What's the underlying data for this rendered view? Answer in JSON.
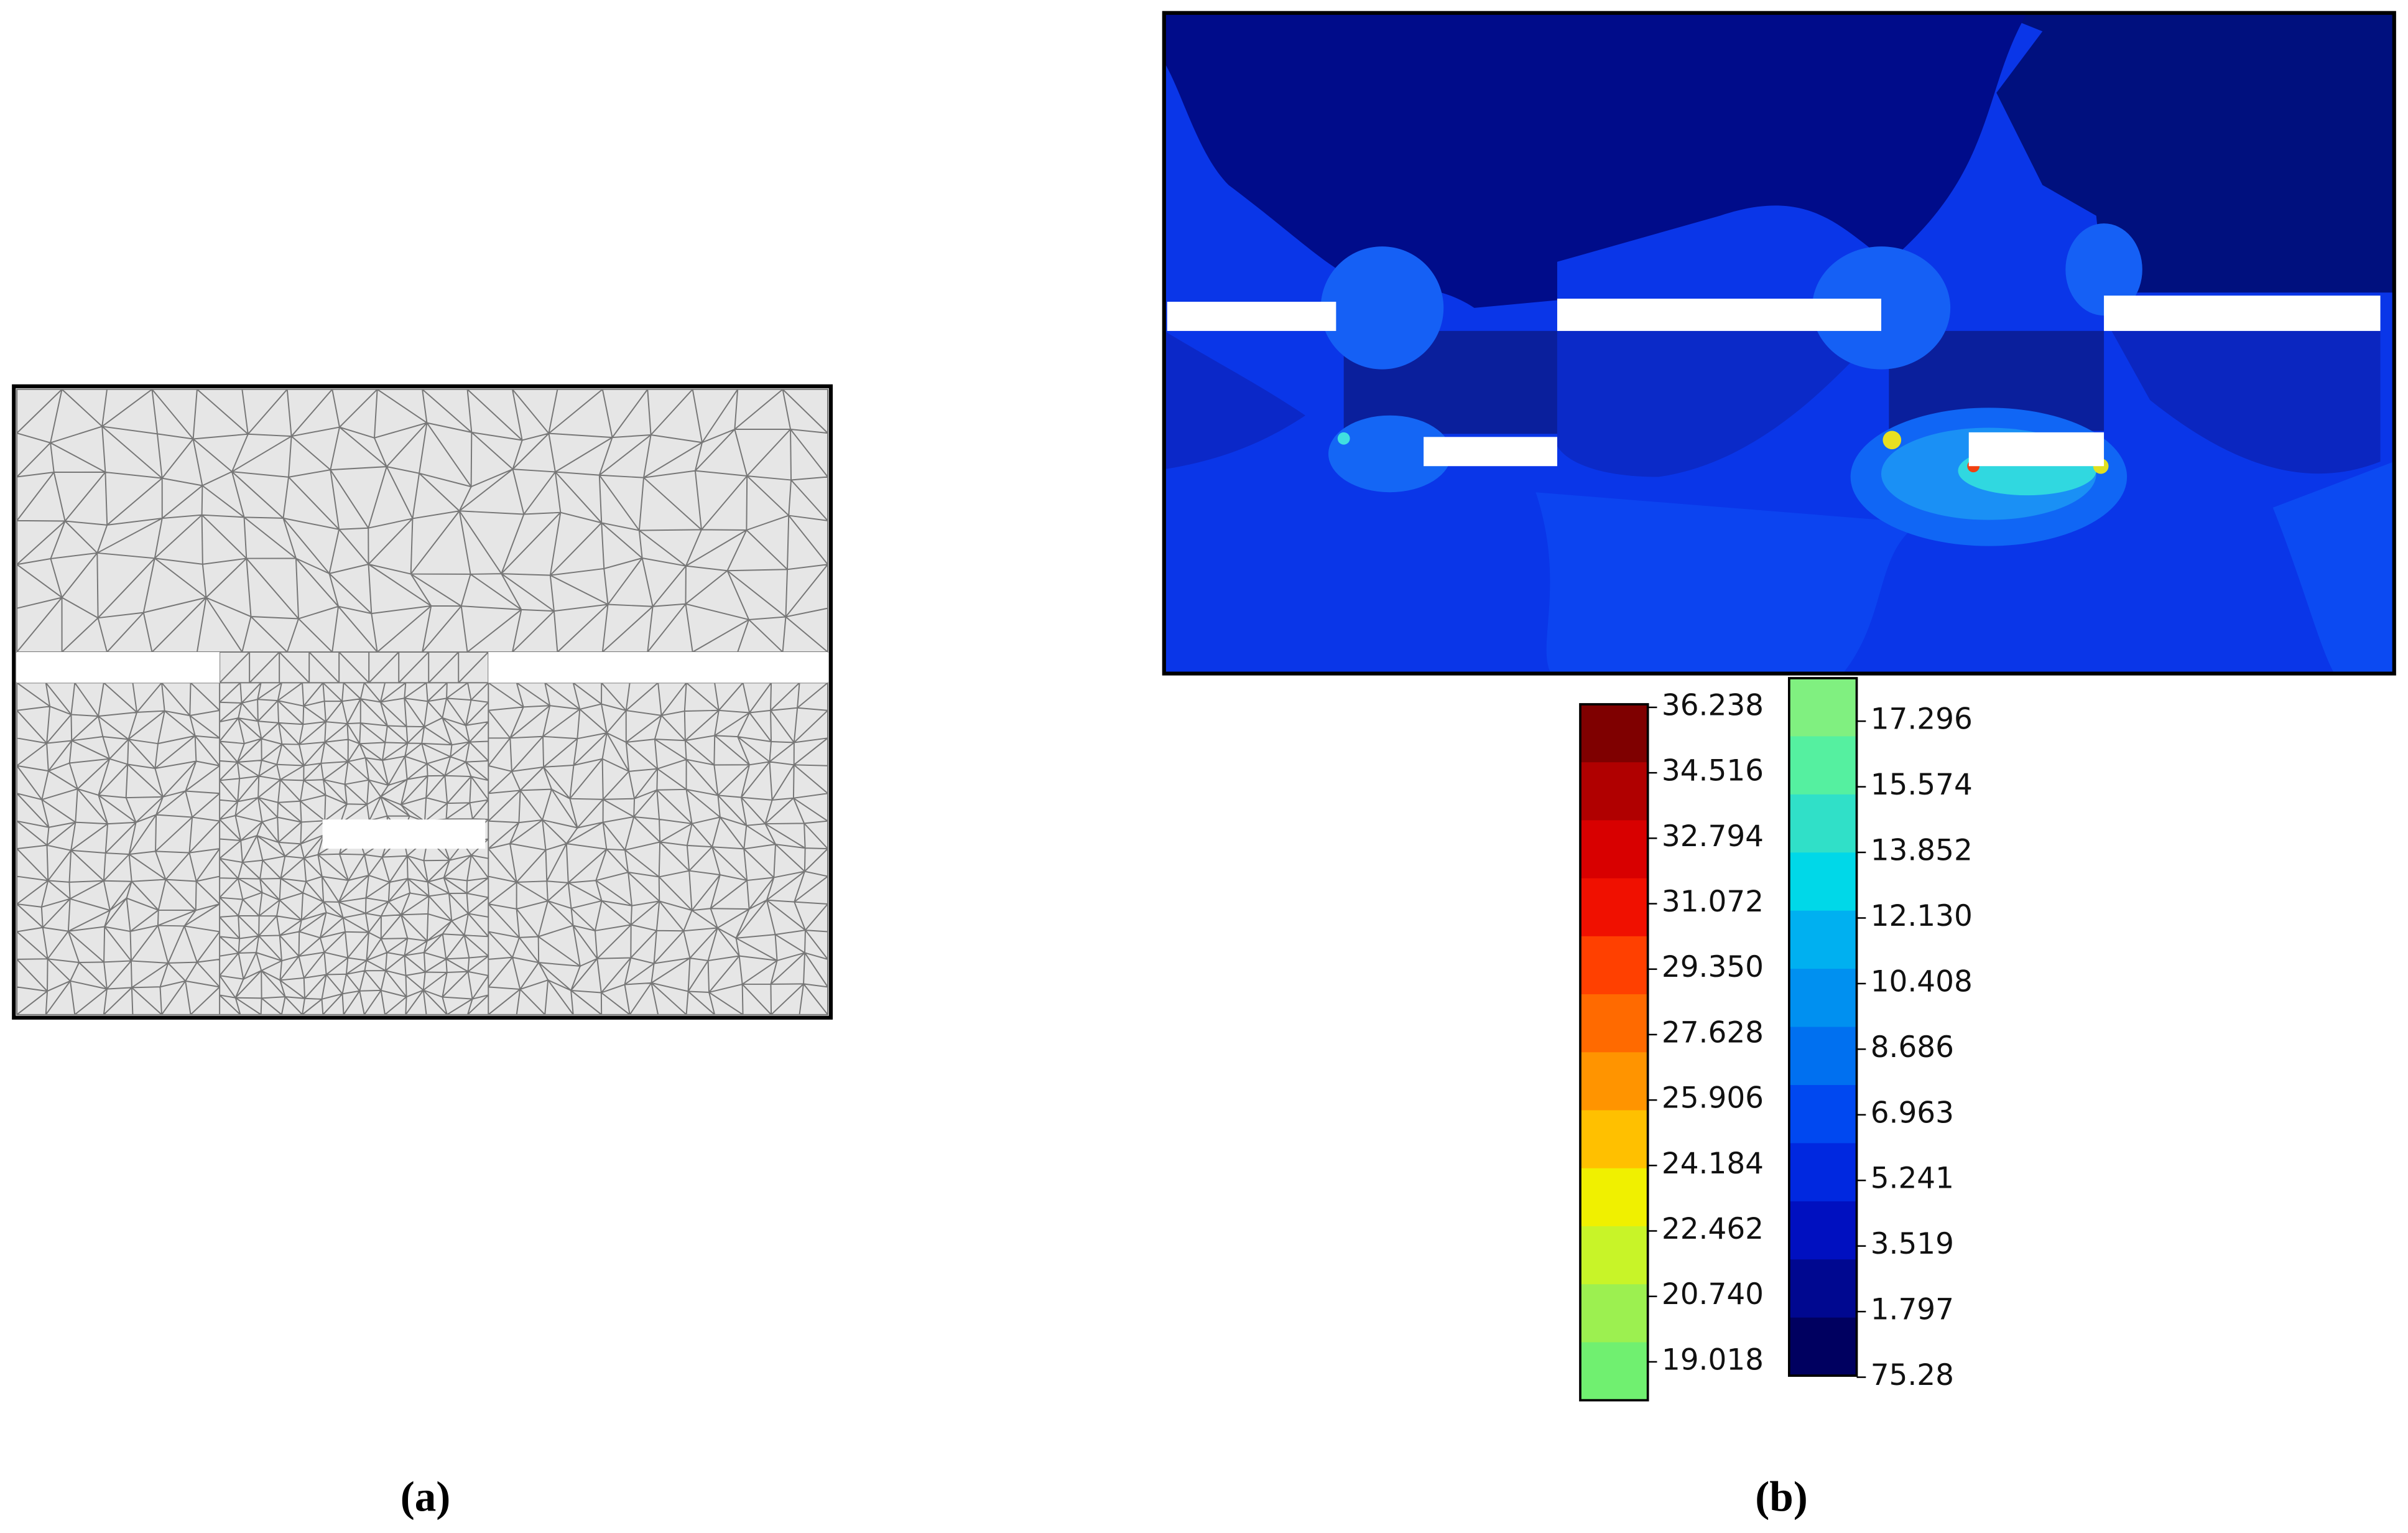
{
  "panels": [
    {
      "label": "(a)"
    },
    {
      "label": "(b)",
      "colorbar_left": [
        "36.238",
        "34.516",
        "32.794",
        "31.072",
        "29.350",
        "27.628",
        "25.906",
        "24.184",
        "22.462",
        "20.740",
        "19.018"
      ],
      "colorbar_right": [
        "17.296",
        "15.574",
        "13.852",
        "12.130",
        "10.408",
        "8.686",
        "6.963",
        "5.241",
        "3.519",
        "1.797",
        "75.28"
      ]
    }
  ]
}
